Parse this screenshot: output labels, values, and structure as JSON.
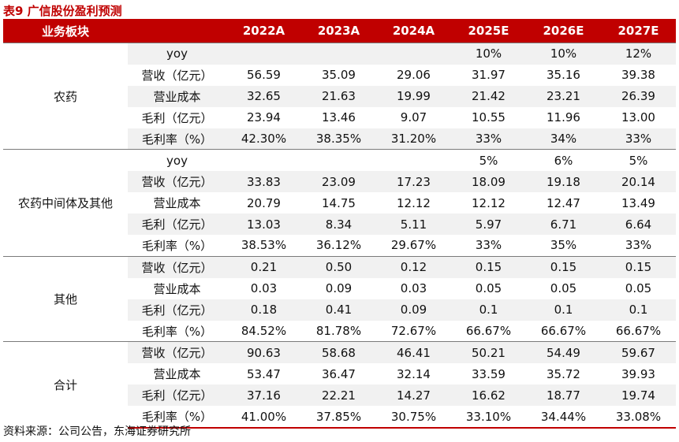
{
  "title": "表9  广信股份盈利预测",
  "header": [
    "业务板块",
    "",
    "2022A",
    "2023A",
    "2024A",
    "2025E",
    "2026E",
    "2027E"
  ],
  "groups": [
    {
      "name": "农药",
      "rows": [
        {
          "item": "yoy",
          "values": [
            "",
            "",
            "",
            "10%",
            "10%",
            "12%"
          ]
        },
        {
          "item": "营收（亿元）",
          "values": [
            "56.59",
            "35.09",
            "29.06",
            "31.97",
            "35.16",
            "39.38"
          ]
        },
        {
          "item": "营业成本",
          "values": [
            "32.65",
            "21.63",
            "19.99",
            "21.42",
            "23.21",
            "26.39"
          ]
        },
        {
          "item": "毛利（亿元）",
          "values": [
            "23.94",
            "13.46",
            "9.07",
            "10.55",
            "11.96",
            "13.00"
          ]
        },
        {
          "item": "毛利率（%）",
          "values": [
            "42.30%",
            "38.35%",
            "31.20%",
            "33%",
            "34%",
            "33%"
          ]
        }
      ]
    },
    {
      "name": "农药中间体及其他",
      "rows": [
        {
          "item": "yoy",
          "values": [
            "",
            "",
            "",
            "5%",
            "6%",
            "5%"
          ]
        },
        {
          "item": "营收（亿元）",
          "values": [
            "33.83",
            "23.09",
            "17.23",
            "18.09",
            "19.18",
            "20.14"
          ]
        },
        {
          "item": "营业成本",
          "values": [
            "20.79",
            "14.75",
            "12.12",
            "12.12",
            "12.47",
            "13.49"
          ]
        },
        {
          "item": "毛利（亿元）",
          "values": [
            "13.03",
            "8.34",
            "5.11",
            "5.97",
            "6.71",
            "6.64"
          ]
        },
        {
          "item": "毛利率（%）",
          "values": [
            "38.53%",
            "36.12%",
            "29.67%",
            "33%",
            "35%",
            "33%"
          ]
        }
      ]
    },
    {
      "name": "其他",
      "rows": [
        {
          "item": "营收（亿元）",
          "values": [
            "0.21",
            "0.50",
            "0.12",
            "0.15",
            "0.15",
            "0.15"
          ]
        },
        {
          "item": "营业成本",
          "values": [
            "0.03",
            "0.09",
            "0.03",
            "0.05",
            "0.05",
            "0.05"
          ]
        },
        {
          "item": "毛利（亿元）",
          "values": [
            "0.18",
            "0.41",
            "0.09",
            "0.1",
            "0.1",
            "0.1"
          ]
        },
        {
          "item": "毛利率（%）",
          "values": [
            "84.52%",
            "81.78%",
            "72.67%",
            "66.67%",
            "66.67%",
            "66.67%"
          ]
        }
      ]
    },
    {
      "name": "合计",
      "rows": [
        {
          "item": "营收（亿元）",
          "values": [
            "90.63",
            "58.68",
            "46.41",
            "50.21",
            "54.49",
            "59.67"
          ]
        },
        {
          "item": "营业成本",
          "values": [
            "53.47",
            "36.47",
            "32.14",
            "33.59",
            "35.72",
            "39.93"
          ]
        },
        {
          "item": "毛利（亿元）",
          "values": [
            "37.16",
            "22.21",
            "14.27",
            "16.62",
            "18.77",
            "19.74"
          ]
        },
        {
          "item": "毛利率（%）",
          "values": [
            "41.00%",
            "37.85%",
            "30.75%",
            "33.10%",
            "34.44%",
            "33.08%"
          ]
        }
      ]
    }
  ],
  "source": "资料来源：公司公告，东海证券研究所",
  "colors": {
    "accent": "#c00000",
    "band": "#f1f1f1"
  }
}
